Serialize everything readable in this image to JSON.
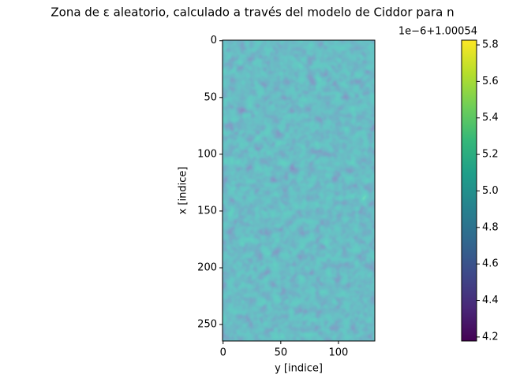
{
  "chart_data": {
    "type": "heatmap",
    "title": "Zona de ε aleatorio, calculado a través del modelo de Ciddor para n",
    "xlabel": "y [indice]",
    "ylabel": "x [indice]",
    "xlim": [
      -0.5,
      131.5
    ],
    "xticks": [
      0,
      50,
      100
    ],
    "ylim": [
      -0.5,
      264.5
    ],
    "yticks": [
      0,
      50,
      100,
      150,
      200,
      250
    ],
    "colormap": "viridis",
    "colorbar": {
      "lim": [
        4.178,
        5.826
      ],
      "ticks": [
        4.2,
        4.4,
        4.6,
        4.8,
        {
          "value": 5,
          "label": "5.0"
        },
        5.2,
        5.4,
        5.6,
        5.8
      ],
      "offset_text": "1e−6+1.00054"
    }
  }
}
